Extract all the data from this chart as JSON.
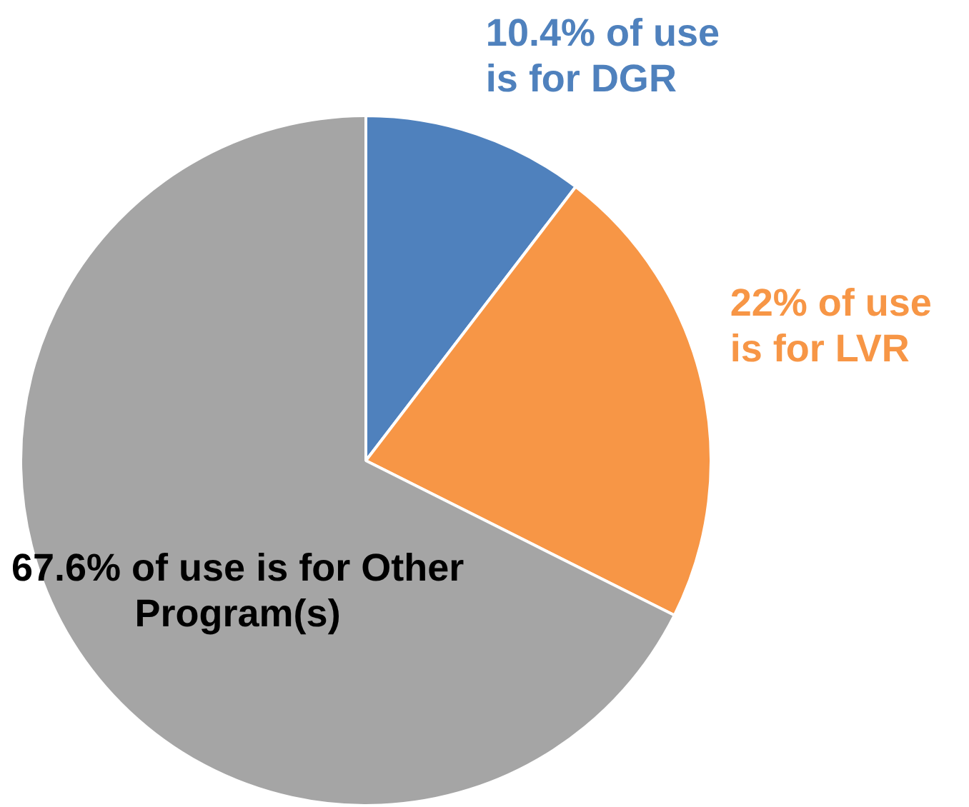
{
  "chart_data": {
    "type": "pie",
    "categories": [
      "10.4% of use is for DGR",
      "22% of use is for LVR",
      "67.6% of use is for Other Program(s)"
    ],
    "values": [
      10.4,
      22,
      67.6
    ],
    "colors": [
      "#4f81bd",
      "#f79646",
      "#a5a5a5"
    ],
    "legend": false
  }
}
